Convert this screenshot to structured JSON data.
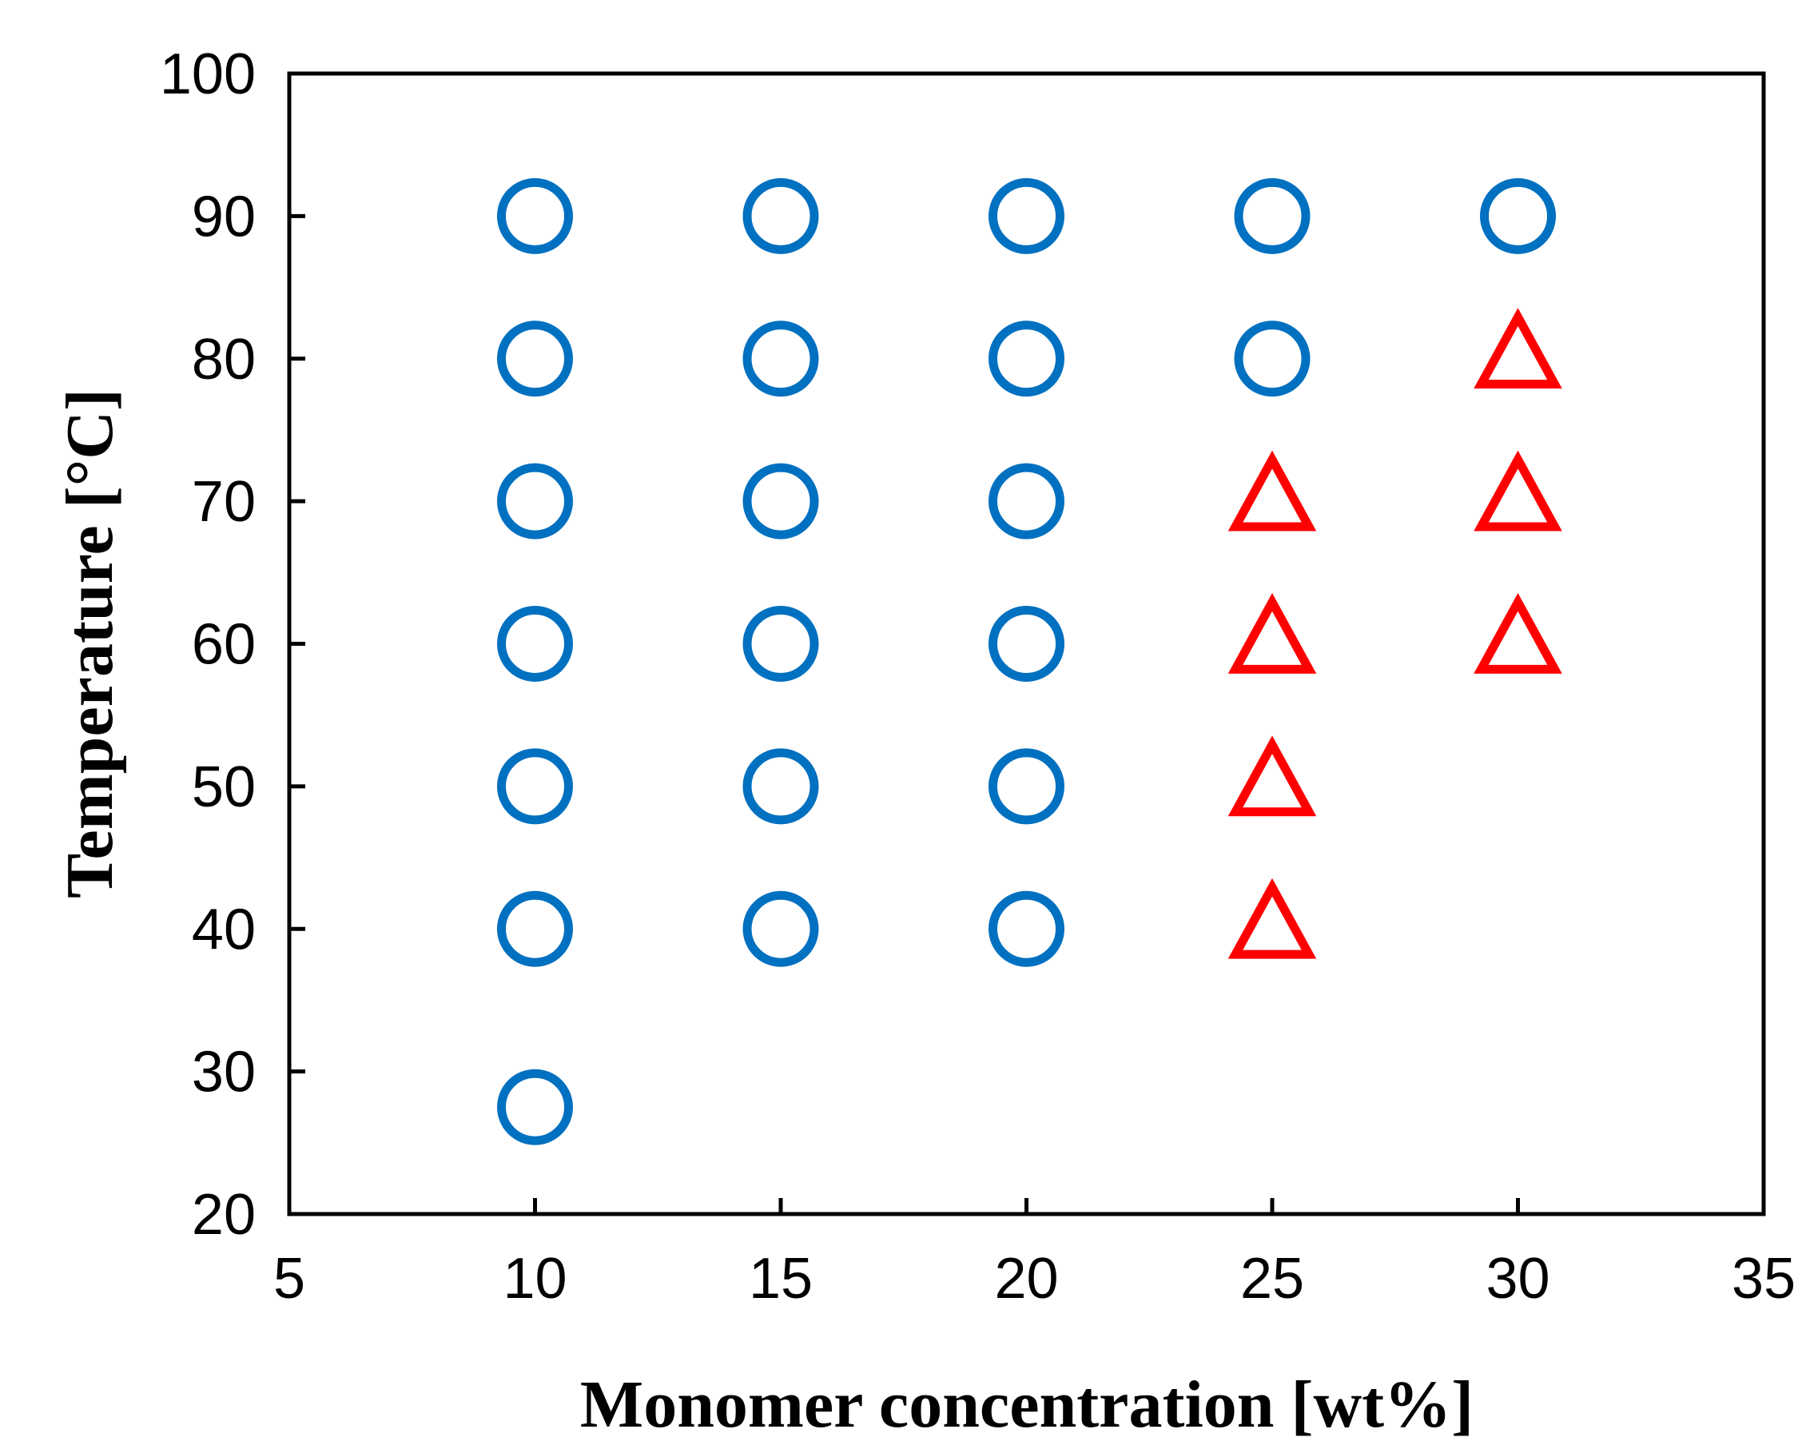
{
  "chart_data": {
    "type": "scatter",
    "title": "",
    "xlabel": "Monomer concentration [wt%]",
    "ylabel": "Temperature [°C]",
    "xlim": [
      5,
      35
    ],
    "ylim": [
      20,
      100
    ],
    "xticks": [
      5,
      10,
      15,
      20,
      25,
      30,
      35
    ],
    "yticks": [
      20,
      30,
      40,
      50,
      60,
      70,
      80,
      90,
      100
    ],
    "grid": false,
    "colors": {
      "circle": "#0070C0",
      "triangle": "#FF0000"
    },
    "series": [
      {
        "name": "circle",
        "marker": "circle",
        "points": [
          [
            10,
            27.5
          ],
          [
            10,
            40
          ],
          [
            10,
            50
          ],
          [
            10,
            60
          ],
          [
            10,
            70
          ],
          [
            10,
            80
          ],
          [
            10,
            90
          ],
          [
            15,
            40
          ],
          [
            15,
            50
          ],
          [
            15,
            60
          ],
          [
            15,
            70
          ],
          [
            15,
            80
          ],
          [
            15,
            90
          ],
          [
            20,
            40
          ],
          [
            20,
            50
          ],
          [
            20,
            60
          ],
          [
            20,
            70
          ],
          [
            20,
            80
          ],
          [
            20,
            90
          ],
          [
            25,
            80
          ],
          [
            25,
            90
          ],
          [
            30,
            90
          ]
        ]
      },
      {
        "name": "triangle",
        "marker": "triangle",
        "points": [
          [
            25,
            40
          ],
          [
            25,
            50
          ],
          [
            25,
            60
          ],
          [
            25,
            70
          ],
          [
            30,
            60
          ],
          [
            30,
            70
          ],
          [
            30,
            80
          ]
        ]
      }
    ]
  }
}
